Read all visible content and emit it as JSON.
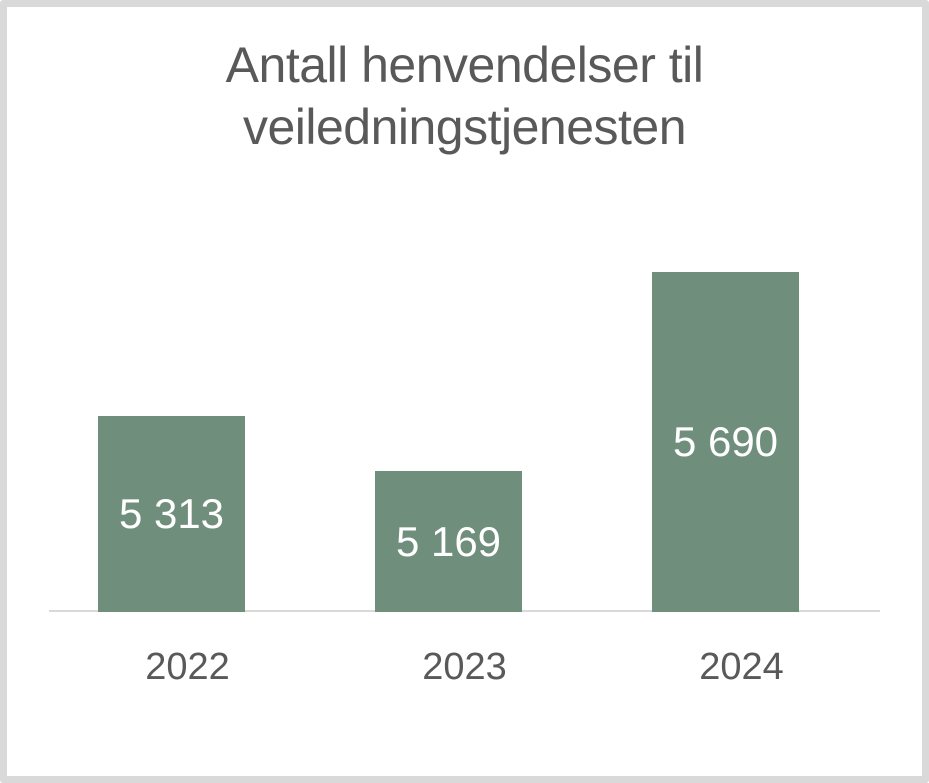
{
  "chart_data": {
    "type": "bar",
    "title": "Antall henvendelser til veiledningstjenesten",
    "title_lines": [
      "Antall henvendelser til",
      "veiledningstjenesten"
    ],
    "categories": [
      "2022",
      "2023",
      "2024"
    ],
    "values": [
      5313,
      5169,
      5690
    ],
    "labels": [
      "5 313",
      "5 169",
      "5 690"
    ],
    "xlabel": "",
    "ylabel": "",
    "ylim": [
      4800,
      5800
    ],
    "grid": false,
    "legend": false,
    "data_label_position": "inside-center",
    "bar_color": "#6F8E7C",
    "label_color": "#FFFFFF",
    "text_color": "#595959",
    "axis_line_color": "#D9D9D9",
    "frame_border_color": "#D9D9D9",
    "background_color": "#FFFFFF"
  }
}
